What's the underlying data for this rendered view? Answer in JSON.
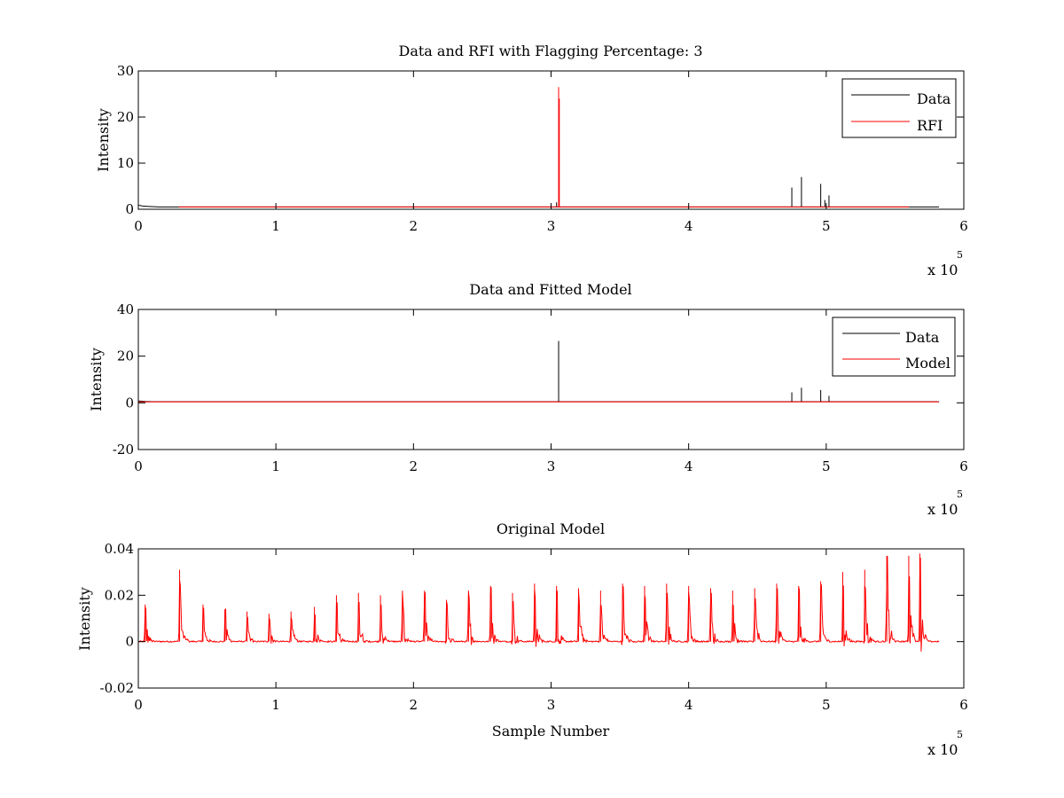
{
  "figure": {
    "background": "#ffffff",
    "colors": {
      "data": "#000000",
      "rfi": "#ff0000",
      "model": "#ff0000",
      "axes": "#000000"
    }
  },
  "chart_data": [
    {
      "type": "line",
      "title": "Data and RFI with Flagging Percentage: 3",
      "xlabel": "",
      "ylabel": "Intensity",
      "xlim": [
        0,
        600000
      ],
      "ylim": [
        0,
        30
      ],
      "xticks": [
        0,
        1,
        2,
        3,
        4,
        5,
        6
      ],
      "xtick_labels": [
        "0",
        "1",
        "2",
        "3",
        "4",
        "5",
        "6"
      ],
      "yticks": [
        0,
        10,
        20,
        30
      ],
      "ytick_labels": [
        "0",
        "10",
        "20",
        "30"
      ],
      "x_multiplier": {
        "text": "x 10",
        "exponent": "5"
      },
      "legend": {
        "position": "top-right",
        "entries": [
          "Data",
          "RFI"
        ]
      },
      "series": [
        {
          "name": "Data",
          "color": "#000000",
          "baseline": 0.5,
          "start": [
            [
              0,
              0.9
            ],
            [
              3000,
              0.7
            ],
            [
              8000,
              0.6
            ],
            [
              15000,
              0.5
            ]
          ],
          "xmax": 582000,
          "spikes": [
            [
              304000,
              1.5
            ],
            [
              475000,
              4.7
            ],
            [
              482000,
              7.0
            ],
            [
              496000,
              5.5
            ],
            [
              499000,
              2.0
            ],
            [
              502000,
              3.0
            ]
          ]
        },
        {
          "name": "RFI",
          "color": "#ff0000",
          "baseline": 0.5,
          "start": [
            [
              30000,
              0.6
            ]
          ],
          "xmax": 560000,
          "spikes": [
            [
              305500,
              26.5
            ],
            [
              306000,
              24.0
            ]
          ]
        }
      ]
    },
    {
      "type": "line",
      "title": "Data and Fitted Model",
      "xlabel": "",
      "ylabel": "Intensity",
      "xlim": [
        0,
        600000
      ],
      "ylim": [
        -20,
        40
      ],
      "xticks": [
        0,
        1,
        2,
        3,
        4,
        5,
        6
      ],
      "xtick_labels": [
        "0",
        "1",
        "2",
        "3",
        "4",
        "5",
        "6"
      ],
      "yticks": [
        -20,
        0,
        20,
        40
      ],
      "ytick_labels": [
        "-20",
        "0",
        "20",
        "40"
      ],
      "x_multiplier": {
        "text": "x 10",
        "exponent": "5"
      },
      "legend": {
        "position": "top-right",
        "entries": [
          "Data",
          "Model"
        ]
      },
      "series": [
        {
          "name": "Data",
          "color": "#000000",
          "baseline": 0.5,
          "start": [
            [
              0,
              0.8
            ],
            [
              5000,
              0.6
            ],
            [
              10000,
              0.5
            ]
          ],
          "xmax": 582000,
          "spikes": [
            [
              305500,
              26.5
            ],
            [
              475000,
              4.5
            ],
            [
              482000,
              6.5
            ],
            [
              496000,
              5.5
            ],
            [
              502000,
              3.0
            ]
          ]
        },
        {
          "name": "Model",
          "color": "#ff0000",
          "baseline": 0.4,
          "start": [
            [
              0,
              0.6
            ]
          ],
          "xmax": 582000,
          "spikes": []
        }
      ]
    },
    {
      "type": "line",
      "title": "Original Model",
      "xlabel": "Sample Number",
      "ylabel": "Intensity",
      "xlim": [
        0,
        600000
      ],
      "ylim": [
        -0.02,
        0.04
      ],
      "xticks": [
        0,
        1,
        2,
        3,
        4,
        5,
        6
      ],
      "xtick_labels": [
        "0",
        "1",
        "2",
        "3",
        "4",
        "5",
        "6"
      ],
      "yticks": [
        -0.02,
        0,
        0.02,
        0.04
      ],
      "ytick_labels": [
        "-0.02",
        "0",
        "0.02",
        "0.04"
      ],
      "x_multiplier": {
        "text": "x 10",
        "exponent": "5"
      },
      "series": [
        {
          "color": "#ff0000",
          "xmax": 582000,
          "bursts_x": [
            5000,
            30000,
            47000,
            63000,
            79000,
            95000,
            111000,
            128000,
            144000,
            160000,
            176000,
            192000,
            208000,
            224000,
            240000,
            256000,
            272000,
            288000,
            304000,
            320000,
            336000,
            352000,
            368000,
            384000,
            400000,
            416000,
            432000,
            448000,
            464000,
            480000,
            496000,
            512000,
            528000,
            544000,
            560000,
            568000
          ],
          "bursts_peak": [
            0.016,
            0.031,
            0.016,
            0.014,
            0.013,
            0.012,
            0.013,
            0.015,
            0.02,
            0.021,
            0.02,
            0.022,
            0.022,
            0.018,
            0.022,
            0.024,
            0.021,
            0.025,
            0.024,
            0.023,
            0.022,
            0.025,
            0.024,
            0.025,
            0.024,
            0.023,
            0.022,
            0.023,
            0.025,
            0.024,
            0.026,
            0.03,
            0.031,
            0.037,
            0.037,
            0.038
          ]
        }
      ]
    }
  ]
}
